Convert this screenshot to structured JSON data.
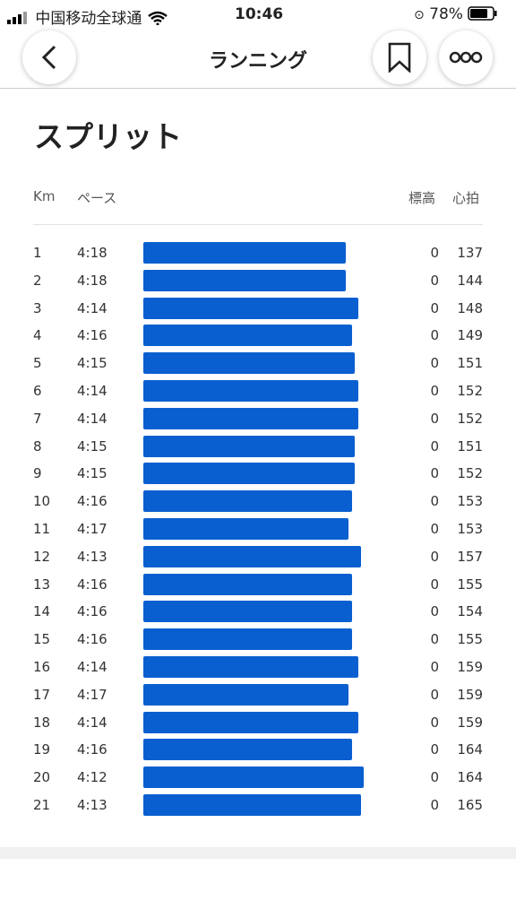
{
  "status_bar": {
    "carrier": "中国移动全球通",
    "time": "10:46",
    "battery": "78%"
  },
  "header": {
    "title": "ランニング"
  },
  "splits": {
    "title": "スプリット",
    "columns": {
      "km": "Km",
      "pace": "ペース",
      "elevation": "標高",
      "heart_rate": "心拍"
    },
    "rows": [
      {
        "km": 1,
        "pace": "4:18",
        "elevation": 0,
        "heart_rate": 137
      },
      {
        "km": 2,
        "pace": "4:18",
        "elevation": 0,
        "heart_rate": 144
      },
      {
        "km": 3,
        "pace": "4:14",
        "elevation": 0,
        "heart_rate": 148
      },
      {
        "km": 4,
        "pace": "4:16",
        "elevation": 0,
        "heart_rate": 149
      },
      {
        "km": 5,
        "pace": "4:15",
        "elevation": 0,
        "heart_rate": 151
      },
      {
        "km": 6,
        "pace": "4:14",
        "elevation": 0,
        "heart_rate": 152
      },
      {
        "km": 7,
        "pace": "4:14",
        "elevation": 0,
        "heart_rate": 152
      },
      {
        "km": 8,
        "pace": "4:15",
        "elevation": 0,
        "heart_rate": 151
      },
      {
        "km": 9,
        "pace": "4:15",
        "elevation": 0,
        "heart_rate": 152
      },
      {
        "km": 10,
        "pace": "4:16",
        "elevation": 0,
        "heart_rate": 153
      },
      {
        "km": 11,
        "pace": "4:17",
        "elevation": 0,
        "heart_rate": 153
      },
      {
        "km": 12,
        "pace": "4:13",
        "elevation": 0,
        "heart_rate": 157
      },
      {
        "km": 13,
        "pace": "4:16",
        "elevation": 0,
        "heart_rate": 155
      },
      {
        "km": 14,
        "pace": "4:16",
        "elevation": 0,
        "heart_rate": 154
      },
      {
        "km": 15,
        "pace": "4:16",
        "elevation": 0,
        "heart_rate": 155
      },
      {
        "km": 16,
        "pace": "4:14",
        "elevation": 0,
        "heart_rate": 159
      },
      {
        "km": 17,
        "pace": "4:17",
        "elevation": 0,
        "heart_rate": 159
      },
      {
        "km": 18,
        "pace": "4:14",
        "elevation": 0,
        "heart_rate": 159
      },
      {
        "km": 19,
        "pace": "4:16",
        "elevation": 0,
        "heart_rate": 164
      },
      {
        "km": 20,
        "pace": "4:12",
        "elevation": 0,
        "heart_rate": 164
      },
      {
        "km": 21,
        "pace": "4:13",
        "elevation": 0,
        "heart_rate": 165
      }
    ]
  }
}
